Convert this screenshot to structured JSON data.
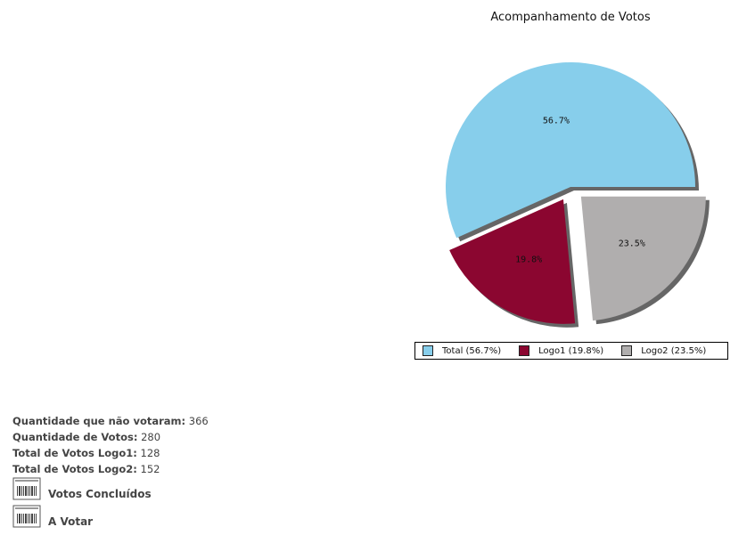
{
  "chart_data": {
    "type": "pie",
    "title": "Acompanhamento de Votos",
    "slices": [
      {
        "name": "Total",
        "value": 56.7,
        "label": "56.7%",
        "legend": "Total (56.7%)",
        "color": "#87ceeb",
        "exploded": false
      },
      {
        "name": "Logo1",
        "value": 19.8,
        "label": "19.8%",
        "legend": "Logo1 (19.8%)",
        "color": "#8b0630",
        "exploded": true
      },
      {
        "name": "Logo2",
        "value": 23.5,
        "label": "23.5%",
        "legend": "Logo2 (23.5%)",
        "color": "#b0aeae",
        "exploded": true
      }
    ],
    "legend_position": "bottom"
  },
  "stats": [
    {
      "label": "Quantidade que não votaram:",
      "value": "366"
    },
    {
      "label": "Quantidade de Votos:",
      "value": "280"
    },
    {
      "label": "Total de Votos Logo1:",
      "value": "128"
    },
    {
      "label": "Total de Votos Logo2:",
      "value": "152"
    }
  ],
  "links": [
    {
      "label": "Votos Concluídos",
      "icon": "document-icon"
    },
    {
      "label": "A Votar",
      "icon": "document-icon"
    }
  ]
}
